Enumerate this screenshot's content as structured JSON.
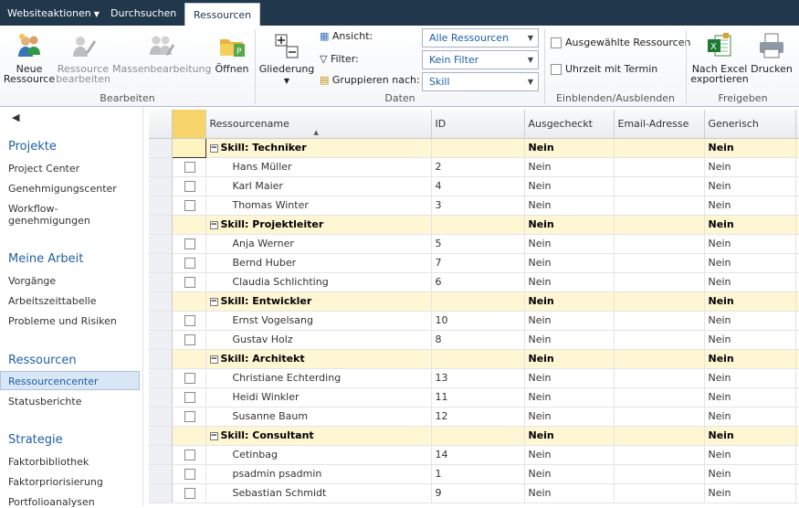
{
  "topbar": {
    "site_actions": "Websiteaktionen",
    "browse": "Durchsuchen",
    "resources_tab": "Ressourcen"
  },
  "ribbon": {
    "new_resource": [
      "Neue",
      "Ressource"
    ],
    "edit_resource": [
      "Ressource",
      "bearbeiten"
    ],
    "bulk_edit": "Massenbearbeitung",
    "open": "Öffnen",
    "outline": "Gliederung",
    "view_label": "Ansicht:",
    "filter_label": "Filter:",
    "group_label": "Gruppieren nach:",
    "view_value": "Alle Ressourcen",
    "filter_value": "Kein Filter",
    "group_value": "Skill",
    "selected_resources": "Ausgewählte Ressourcen",
    "time_with_date": "Uhrzeit mit Termin",
    "export_excel": [
      "Nach Excel",
      "exportieren"
    ],
    "print": "Drucken",
    "groups": {
      "edit": "Bearbeiten",
      "data": "Daten",
      "show_hide": "Einblenden/Ausblenden",
      "share": "Freigeben"
    }
  },
  "nav": {
    "sections": [
      {
        "title": "Projekte",
        "items": [
          "Project Center",
          "Genehmigungscenter",
          "Workflow-genehmigungen"
        ]
      },
      {
        "title": "Meine Arbeit",
        "items": [
          "Vorgänge",
          "Arbeitszeittabelle",
          "Probleme und Risiken"
        ]
      },
      {
        "title": "Ressourcen",
        "items": [
          "Ressourcencenter",
          "Statusberichte"
        ]
      },
      {
        "title": "Strategie",
        "items": [
          "Faktorbibliothek",
          "Faktorpriorisierung",
          "Portfolioanalysen"
        ]
      }
    ],
    "workflow_line1": "Workflow-",
    "workflow_line2": "genehmigungen",
    "selected": "Ressourcencenter"
  },
  "grid": {
    "columns": [
      "Ressourcename",
      "ID",
      "Ausgecheckt",
      "Email-Adresse",
      "Generisch"
    ],
    "groups": [
      {
        "label": "Skill: Techniker",
        "checked_out": "Nein",
        "generic": "Nein",
        "rows": [
          [
            "Hans Müller",
            "2",
            "Nein",
            "",
            "Nein"
          ],
          [
            "Karl Maier",
            "4",
            "Nein",
            "",
            "Nein"
          ],
          [
            "Thomas Winter",
            "3",
            "Nein",
            "",
            "Nein"
          ]
        ]
      },
      {
        "label": "Skill: Projektleiter",
        "checked_out": "Nein",
        "generic": "Nein",
        "rows": [
          [
            "Anja Werner",
            "5",
            "Nein",
            "",
            "Nein"
          ],
          [
            "Bernd Huber",
            "7",
            "Nein",
            "",
            "Nein"
          ],
          [
            "Claudia Schlichting",
            "6",
            "Nein",
            "",
            "Nein"
          ]
        ]
      },
      {
        "label": "Skill: Entwickler",
        "checked_out": "Nein",
        "generic": "Nein",
        "rows": [
          [
            "Ernst Vogelsang",
            "10",
            "Nein",
            "",
            "Nein"
          ],
          [
            "Gustav Holz",
            "8",
            "Nein",
            "",
            "Nein"
          ]
        ]
      },
      {
        "label": "Skill: Architekt",
        "checked_out": "Nein",
        "generic": "Nein",
        "rows": [
          [
            "Christiane Echterding",
            "13",
            "Nein",
            "",
            "Nein"
          ],
          [
            "Heidi Winkler",
            "11",
            "Nein",
            "",
            "Nein"
          ],
          [
            "Susanne Baum",
            "12",
            "Nein",
            "",
            "Nein"
          ]
        ]
      },
      {
        "label": "Skill: Consultant",
        "checked_out": "Nein",
        "generic": "Nein",
        "rows": [
          [
            "Cetinbag",
            "14",
            "Nein",
            "",
            "Nein"
          ],
          [
            "psadmin psadmin",
            "1",
            "Nein",
            "",
            "Nein"
          ],
          [
            "Sebastian Schmidt",
            "9",
            "Nein",
            "",
            "Nein"
          ]
        ]
      }
    ]
  },
  "colors": {
    "topbar": "#21374c",
    "link": "#1f5fa6",
    "group_row": "#fff6d4"
  }
}
